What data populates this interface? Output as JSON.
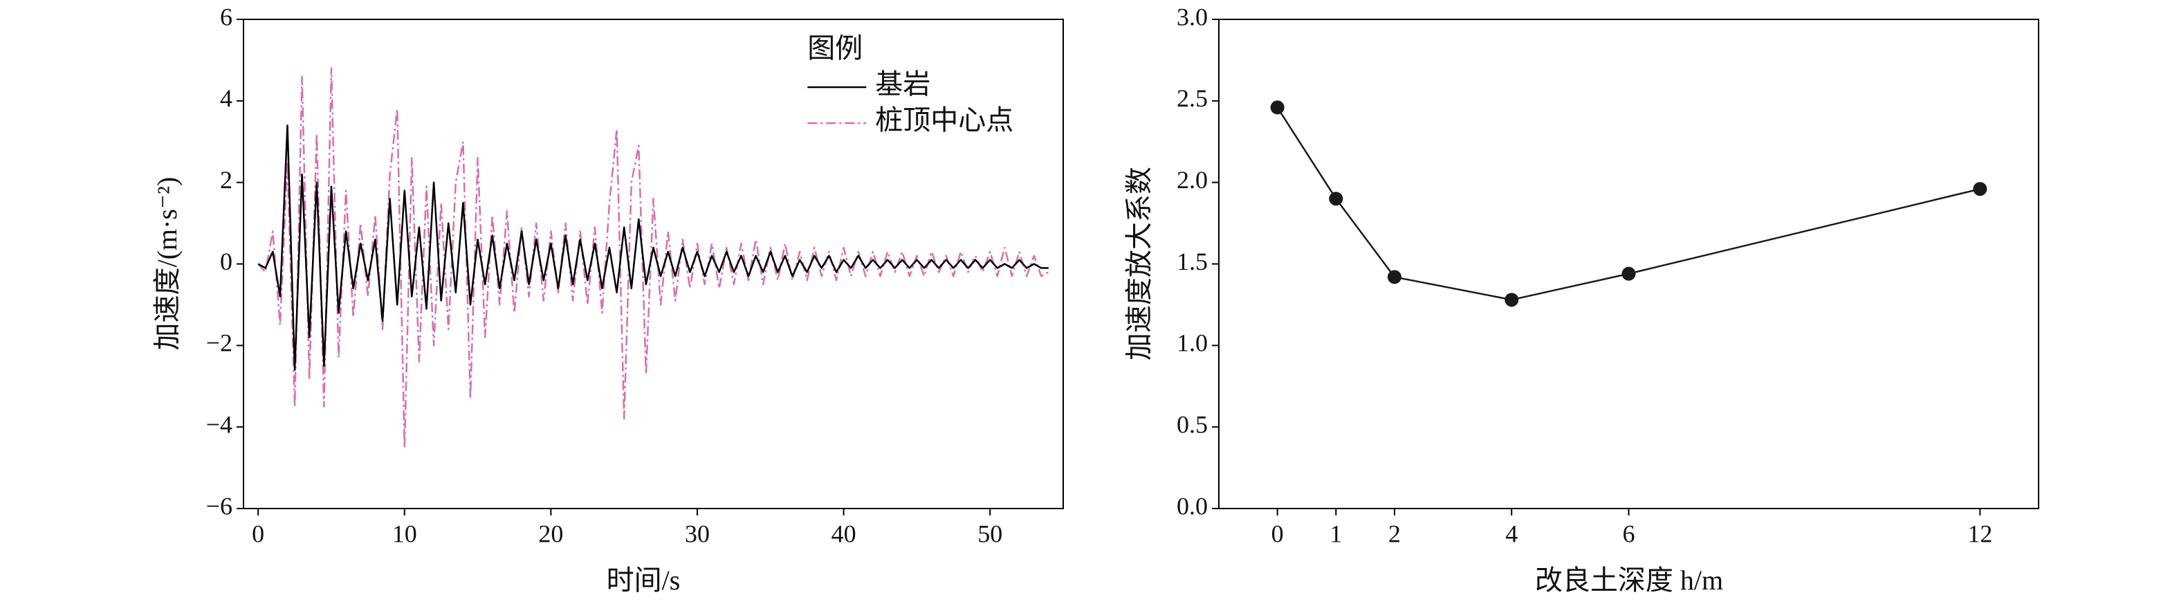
{
  "chart_data": [
    {
      "type": "line",
      "xlabel": "时间/s",
      "ylabel": "加速度/(m·s⁻²)",
      "legend_title": "图例",
      "legend": "upper-right",
      "x": [
        0,
        0.5,
        1,
        1.5,
        2,
        2.5,
        3,
        3.5,
        4,
        4.5,
        5,
        5.5,
        6,
        6.5,
        7,
        7.5,
        8,
        8.5,
        9,
        9.5,
        10,
        10.5,
        11,
        11.5,
        12,
        12.5,
        13,
        13.5,
        14,
        14.5,
        15,
        15.5,
        16,
        16.5,
        17,
        17.5,
        18,
        18.5,
        19,
        19.5,
        20,
        20.5,
        21,
        21.5,
        22,
        22.5,
        23,
        23.5,
        24,
        24.5,
        25,
        25.5,
        26,
        26.5,
        27,
        27.5,
        28,
        28.5,
        29,
        29.5,
        30,
        30.5,
        31,
        31.5,
        32,
        32.5,
        33,
        33.5,
        34,
        34.5,
        35,
        35.5,
        36,
        36.5,
        37,
        37.5,
        38,
        38.5,
        39,
        39.5,
        40,
        40.5,
        41,
        41.5,
        42,
        42.5,
        43,
        43.5,
        44,
        44.5,
        45,
        45.5,
        46,
        46.5,
        47,
        47.5,
        48,
        48.5,
        49,
        49.5,
        50,
        50.5,
        51,
        51.5,
        52,
        52.5,
        53,
        53.5,
        54
      ],
      "series": [
        {
          "name": "基岩",
          "color": "#000000",
          "linestyle": "solid",
          "values": [
            0,
            -0.1,
            0.3,
            -0.8,
            3.4,
            -2.6,
            2.2,
            -1.8,
            2.0,
            -2.5,
            1.9,
            -1.2,
            0.8,
            -0.6,
            0.5,
            -0.4,
            0.6,
            -1.4,
            1.6,
            -1.0,
            1.8,
            -0.8,
            0.9,
            -1.1,
            2.0,
            -0.9,
            1.0,
            -0.7,
            1.5,
            -1.0,
            0.6,
            -0.5,
            0.7,
            -0.6,
            0.5,
            -0.4,
            0.8,
            -0.5,
            0.6,
            -0.4,
            0.5,
            -0.6,
            0.7,
            -0.5,
            0.6,
            -0.4,
            0.5,
            -0.6,
            0.4,
            -0.7,
            0.9,
            -0.6,
            1.1,
            -0.5,
            0.4,
            -0.3,
            0.3,
            -0.3,
            0.4,
            -0.2,
            0.3,
            -0.3,
            0.2,
            -0.2,
            0.3,
            -0.2,
            0.2,
            -0.3,
            0.2,
            -0.2,
            0.3,
            -0.2,
            0.2,
            -0.3,
            0.1,
            -0.2,
            0.2,
            -0.1,
            0.2,
            -0.2,
            0.1,
            -0.1,
            0.2,
            -0.1,
            0.1,
            -0.1,
            0.1,
            -0.1,
            0.1,
            -0.1,
            0.1,
            -0.1,
            0.1,
            -0.1,
            0.1,
            -0.1,
            0.1,
            -0.1,
            0.1,
            -0.1,
            0.1,
            -0.1,
            0.0,
            -0.1,
            0.1,
            -0.1,
            0.0,
            -0.1,
            -0.1
          ]
        },
        {
          "name": "桩顶中心点",
          "color": "#d66fb4",
          "linestyle": "dashdot",
          "values": [
            0,
            -0.2,
            0.8,
            -1.5,
            2.5,
            -3.5,
            4.6,
            -2.8,
            3.2,
            -3.5,
            4.8,
            -2.3,
            1.8,
            -1.3,
            1.0,
            -0.8,
            1.2,
            -1.6,
            2.2,
            3.8,
            -4.5,
            2.6,
            -2.4,
            1.9,
            -2.0,
            1.5,
            -1.6,
            2.0,
            3.0,
            -3.3,
            2.6,
            -1.8,
            1.2,
            -1.0,
            1.3,
            -1.2,
            0.9,
            -0.8,
            1.0,
            -0.9,
            0.8,
            -0.7,
            1.0,
            -0.9,
            0.8,
            -1.0,
            0.9,
            -1.2,
            1.5,
            3.3,
            -3.8,
            2.0,
            2.9,
            -2.7,
            1.6,
            -1.0,
            0.8,
            -0.9,
            0.6,
            -0.6,
            0.5,
            -0.5,
            0.5,
            -0.6,
            0.4,
            -0.5,
            0.5,
            -0.4,
            0.6,
            -0.5,
            0.4,
            -0.4,
            0.5,
            -0.4,
            0.3,
            -0.4,
            0.4,
            -0.3,
            0.3,
            -0.4,
            0.4,
            -0.3,
            0.3,
            -0.3,
            0.3,
            -0.3,
            0.3,
            -0.2,
            0.3,
            -0.3,
            0.2,
            -0.3,
            0.3,
            -0.2,
            0.2,
            -0.3,
            0.3,
            -0.2,
            0.2,
            -0.2,
            0.3,
            -0.3,
            0.4,
            -0.3,
            0.3,
            -0.3,
            0.2,
            -0.3,
            -0.2
          ]
        }
      ],
      "xlim": [
        -1,
        55
      ],
      "xticks": [
        0,
        10,
        20,
        30,
        40,
        50
      ],
      "ylim": [
        -6,
        6
      ],
      "yticks": [
        {
          "value": -6,
          "label": "−6"
        },
        {
          "value": -4,
          "label": "−4"
        },
        {
          "value": -2,
          "label": "−2"
        },
        0,
        2,
        4,
        6
      ]
    },
    {
      "type": "line",
      "xlabel": "改良土深度 h/m",
      "ylabel": "加速度放大系数",
      "x": [
        0,
        1,
        2,
        4,
        6,
        12
      ],
      "values": [
        2.46,
        1.9,
        1.42,
        1.28,
        1.44,
        1.96
      ],
      "color": "#1a1a1a",
      "marker": "circle",
      "xlim": [
        -1,
        13
      ],
      "xticks": [
        0,
        1,
        2,
        4,
        6,
        12
      ],
      "ylim": [
        0,
        3
      ],
      "yticks": [
        {
          "value": 0,
          "label": "0.0"
        },
        0.5,
        {
          "value": 1,
          "label": "1.0"
        },
        1.5,
        {
          "value": 2,
          "label": "2.0"
        },
        2.5,
        {
          "value": 3,
          "label": "3.0"
        }
      ]
    }
  ]
}
